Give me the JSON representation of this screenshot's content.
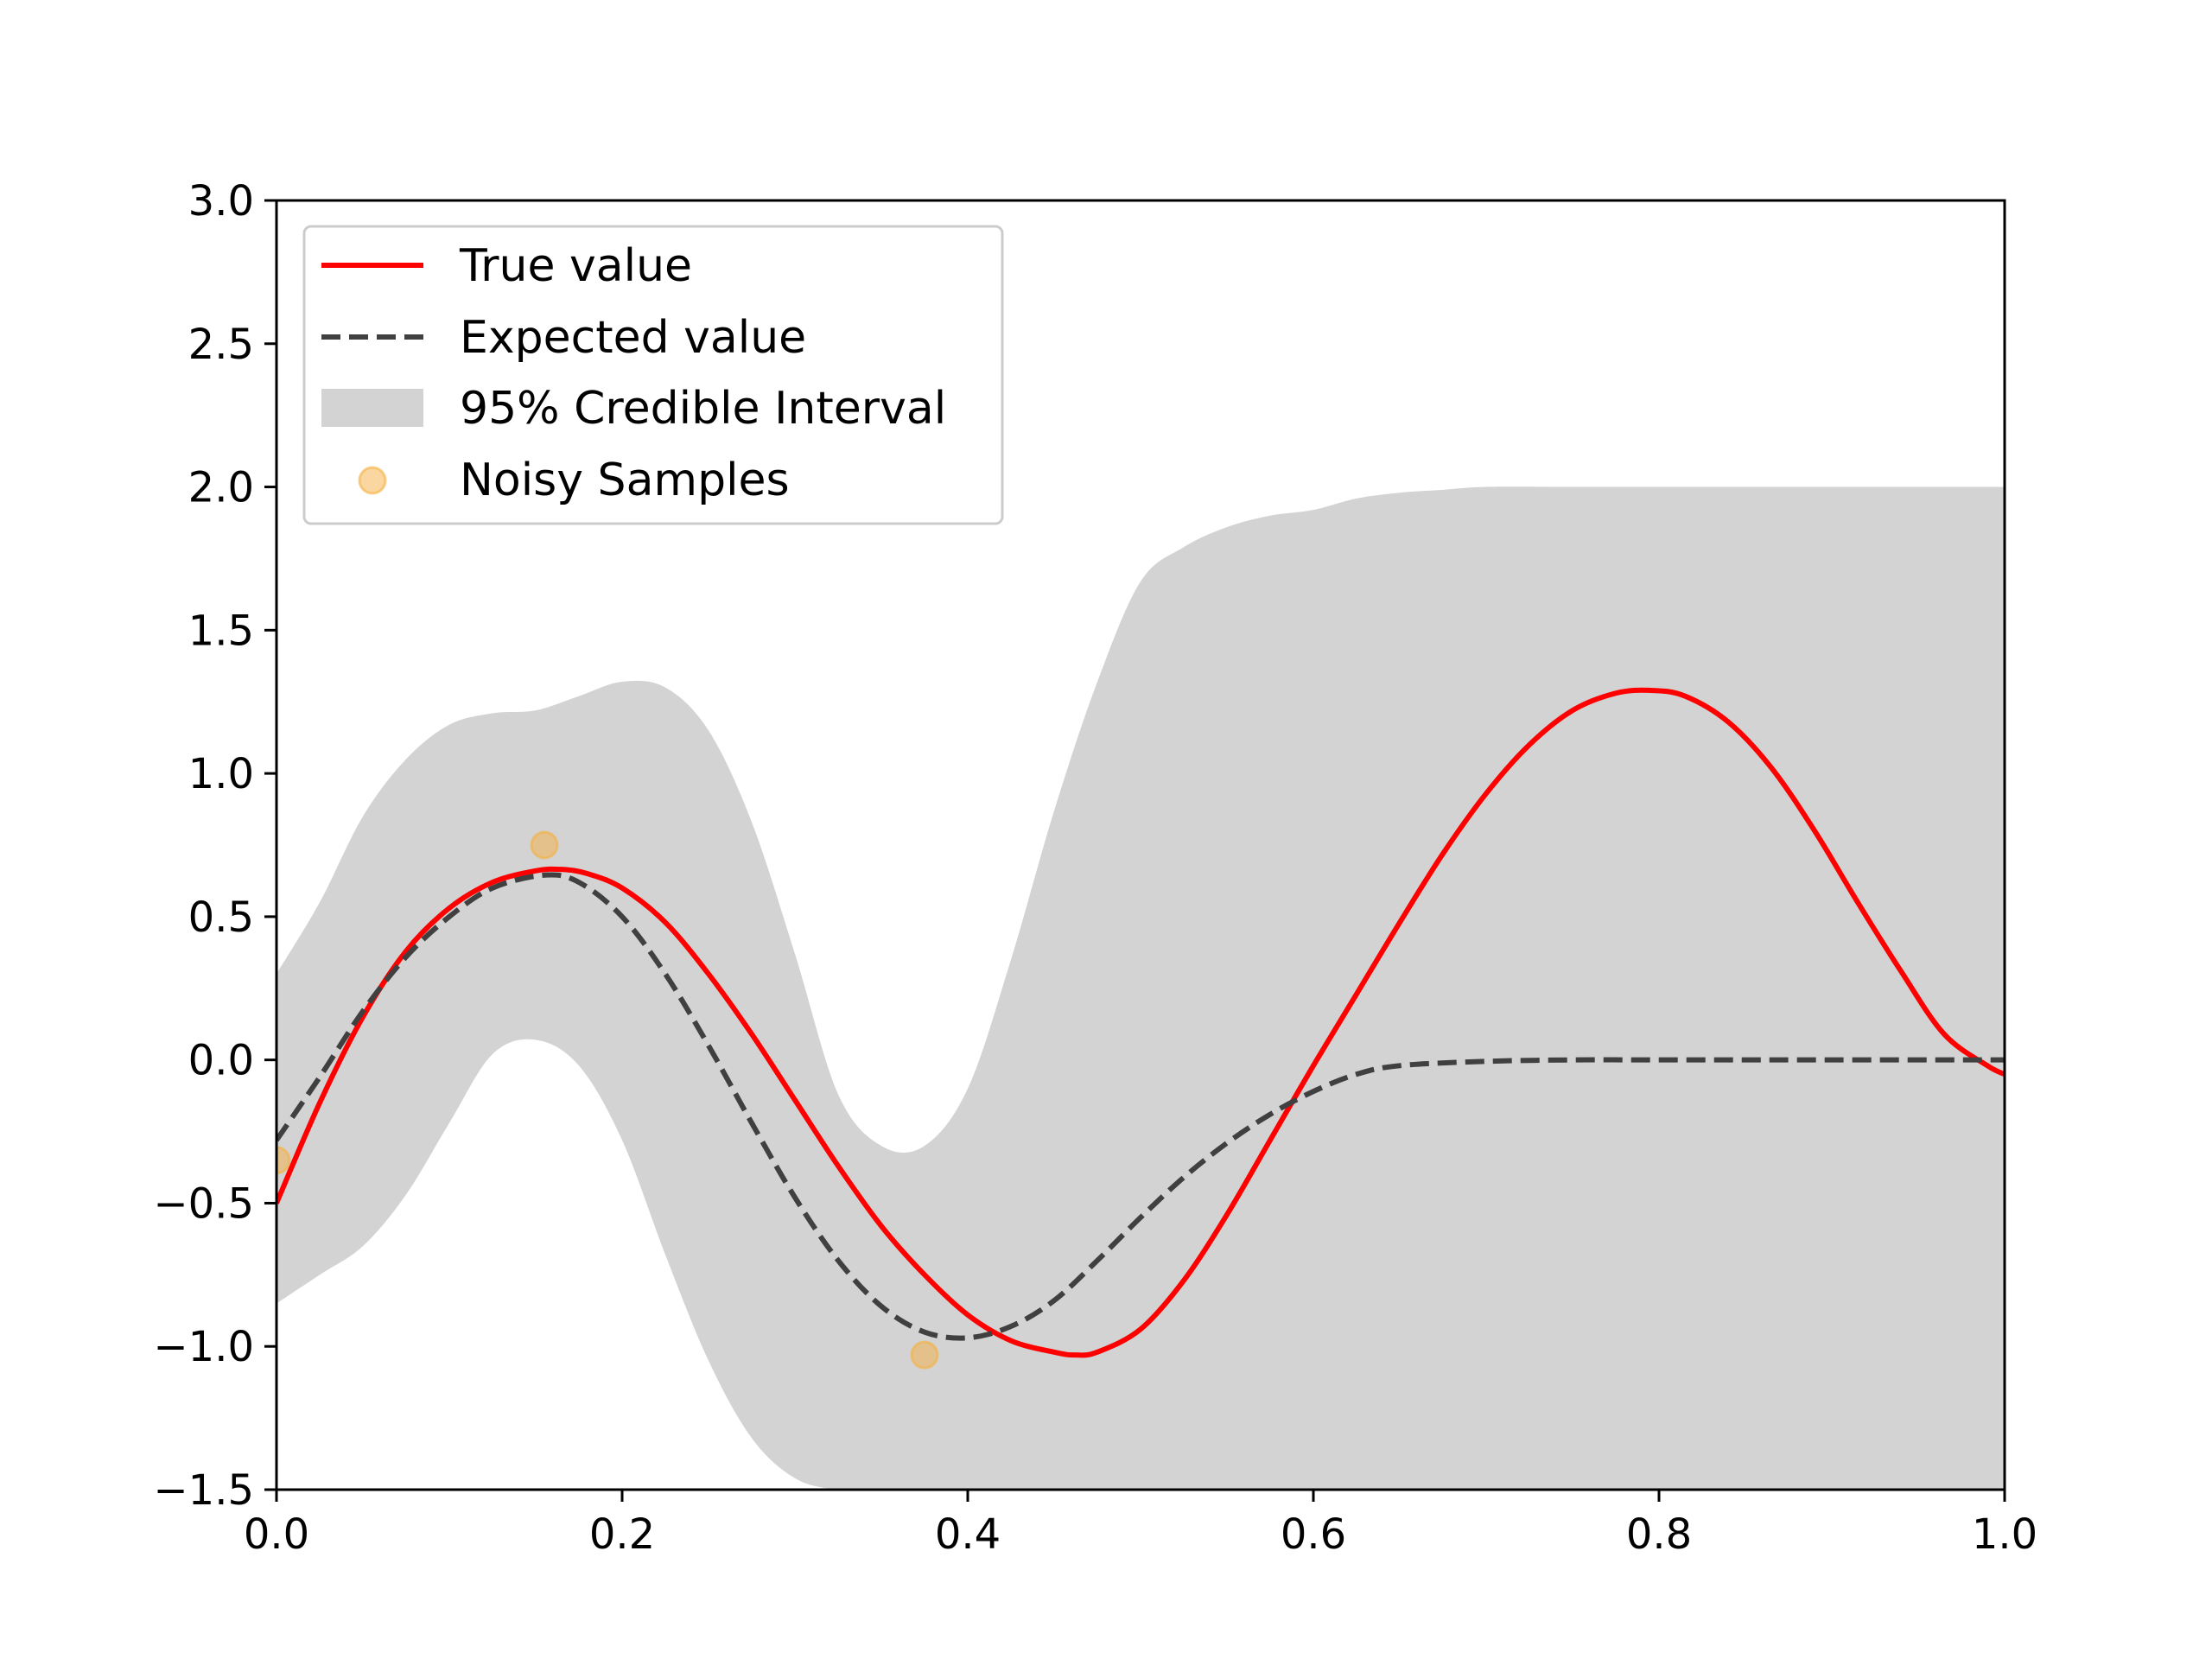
{
  "chart_data": {
    "type": "line",
    "title": "",
    "xlabel": "",
    "ylabel": "",
    "xlim": [
      0.0,
      1.0
    ],
    "ylim": [
      -1.5,
      3.0
    ],
    "x_ticks": [
      0.0,
      0.2,
      0.4,
      0.6,
      0.8,
      1.0
    ],
    "x_tick_labels": [
      "0.0",
      "0.2",
      "0.4",
      "0.6",
      "0.8",
      "1.0"
    ],
    "y_ticks": [
      -1.5,
      -1.0,
      -0.5,
      0.0,
      0.5,
      1.0,
      1.5,
      2.0,
      2.5,
      3.0
    ],
    "y_tick_labels": [
      "−1.5",
      "−1.0",
      "−0.5",
      "0.0",
      "0.5",
      "1.0",
      "1.5",
      "2.0",
      "2.5",
      "3.0"
    ],
    "grid": false,
    "legend_position": "upper-left",
    "legend": [
      {
        "label": "True value",
        "kind": "line",
        "color": "#ff0000"
      },
      {
        "label": "Expected value",
        "kind": "dashed-line",
        "color": "#404040"
      },
      {
        "label": "95% Credible Interval",
        "kind": "patch",
        "color": "#d3d3d3"
      },
      {
        "label": "Noisy Samples",
        "kind": "marker",
        "color": "#f5b041"
      }
    ],
    "series": [
      {
        "name": "True value",
        "style": "solid",
        "color": "#ff0000",
        "x": [
          0.0,
          0.025,
          0.05,
          0.075,
          0.1,
          0.125,
          0.15,
          0.165,
          0.18,
          0.2,
          0.225,
          0.25,
          0.275,
          0.3,
          0.325,
          0.35,
          0.375,
          0.4,
          0.425,
          0.45,
          0.462,
          0.475,
          0.5,
          0.525,
          0.55,
          0.575,
          0.6,
          0.625,
          0.65,
          0.675,
          0.7,
          0.725,
          0.75,
          0.775,
          0.795,
          0.815,
          0.84,
          0.865,
          0.89,
          0.915,
          0.94,
          0.965,
          0.99,
          1.0
        ],
        "y": [
          -0.5,
          -0.15,
          0.15,
          0.38,
          0.53,
          0.62,
          0.66,
          0.665,
          0.65,
          0.6,
          0.48,
          0.3,
          0.09,
          -0.14,
          -0.37,
          -0.58,
          -0.75,
          -0.89,
          -0.98,
          -1.02,
          -1.03,
          -1.02,
          -0.94,
          -0.77,
          -0.54,
          -0.28,
          -0.02,
          0.23,
          0.48,
          0.72,
          0.93,
          1.1,
          1.22,
          1.28,
          1.29,
          1.27,
          1.18,
          1.02,
          0.8,
          0.55,
          0.31,
          0.09,
          -0.02,
          -0.05
        ]
      },
      {
        "name": "Expected value",
        "style": "dashed",
        "color": "#404040",
        "x": [
          0.0,
          0.025,
          0.05,
          0.075,
          0.1,
          0.125,
          0.155,
          0.175,
          0.2,
          0.225,
          0.25,
          0.275,
          0.3,
          0.325,
          0.35,
          0.375,
          0.4,
          0.425,
          0.45,
          0.475,
          0.5,
          0.525,
          0.55,
          0.575,
          0.6,
          0.625,
          0.65,
          0.7,
          0.75,
          0.8,
          0.85,
          0.9,
          1.0
        ],
        "y": [
          -0.28,
          -0.06,
          0.17,
          0.36,
          0.5,
          0.6,
          0.645,
          0.62,
          0.5,
          0.3,
          0.05,
          -0.22,
          -0.48,
          -0.7,
          -0.86,
          -0.95,
          -0.97,
          -0.93,
          -0.84,
          -0.7,
          -0.55,
          -0.41,
          -0.29,
          -0.19,
          -0.11,
          -0.05,
          -0.02,
          -0.005,
          0.0,
          0.0,
          0.0,
          0.0,
          0.0
        ]
      }
    ],
    "credible_interval": {
      "name": "95% Credible Interval",
      "color": "#d3d3d3",
      "x": [
        0.0,
        0.025,
        0.05,
        0.075,
        0.1,
        0.125,
        0.15,
        0.175,
        0.2,
        0.225,
        0.25,
        0.275,
        0.3,
        0.325,
        0.35,
        0.375,
        0.4,
        0.425,
        0.45,
        0.475,
        0.5,
        0.525,
        0.55,
        0.575,
        0.6,
        0.625,
        0.65,
        0.675,
        0.7,
        0.75,
        0.8,
        0.85,
        0.9,
        0.95,
        1.0
      ],
      "upper": [
        0.3,
        0.55,
        0.85,
        1.05,
        1.17,
        1.21,
        1.22,
        1.27,
        1.32,
        1.3,
        1.15,
        0.83,
        0.37,
        -0.12,
        -0.3,
        -0.3,
        -0.1,
        0.35,
        0.87,
        1.32,
        1.67,
        1.79,
        1.86,
        1.9,
        1.92,
        1.96,
        1.98,
        1.99,
        2.0,
        2.0,
        2.0,
        2.0,
        2.0,
        2.0,
        2.0
      ],
      "lower": [
        -0.85,
        -0.75,
        -0.65,
        -0.47,
        -0.22,
        0.02,
        0.07,
        -0.02,
        -0.28,
        -0.68,
        -1.05,
        -1.32,
        -1.46,
        -1.5,
        -1.5,
        -1.5,
        -1.5,
        -1.5,
        -1.5,
        -1.5,
        -1.5,
        -1.5,
        -1.5,
        -1.5,
        -1.5,
        -1.5,
        -1.5,
        -1.5,
        -1.5,
        -1.5,
        -1.5,
        -1.5,
        -1.5,
        -1.5,
        -1.5
      ]
    },
    "scatter": {
      "name": "Noisy Samples",
      "color": "#f5b041",
      "points": [
        {
          "x": 0.0,
          "y": -0.35
        },
        {
          "x": 0.155,
          "y": 0.75
        },
        {
          "x": 0.375,
          "y": -1.03
        }
      ]
    }
  }
}
